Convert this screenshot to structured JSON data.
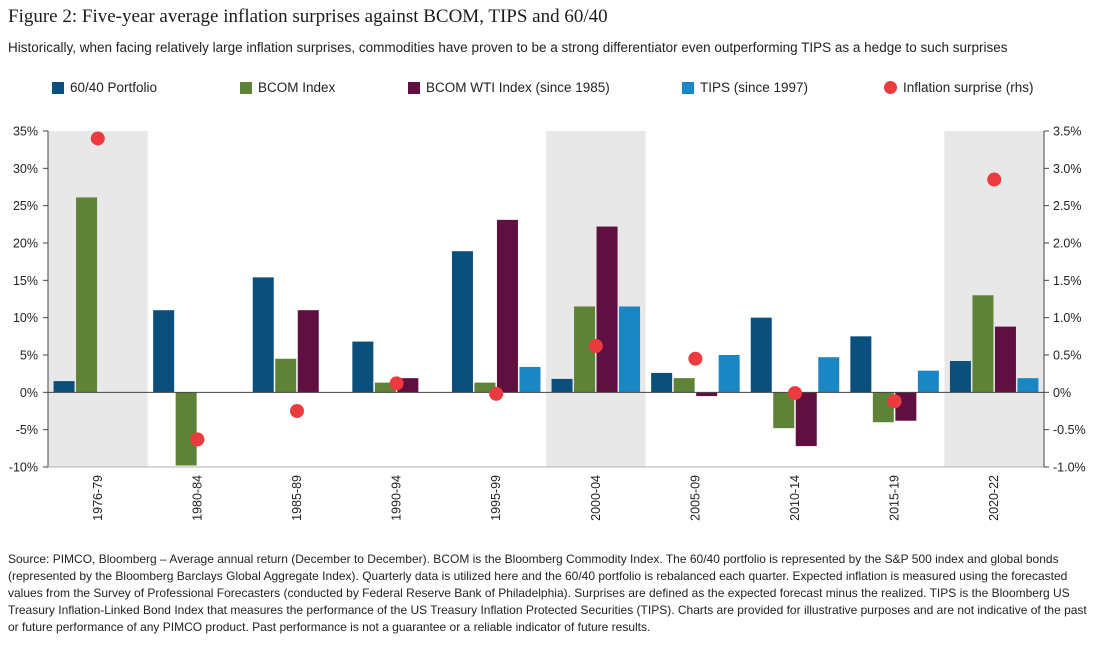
{
  "title": "Figure 2: Five-year average inflation surprises against BCOM, TIPS and 60/40",
  "subtitle": "Historically, when facing relatively large inflation surprises, commodities have proven to be a strong differentiator even outperforming TIPS as a hedge to such surprises",
  "legend": [
    {
      "label": "60/40 Portfolio",
      "color": "#0b4f7c",
      "shape": "square"
    },
    {
      "label": "BCOM Index",
      "color": "#5e8236",
      "shape": "square"
    },
    {
      "label": "BCOM WTI Index (since 1985)",
      "color": "#5f1041",
      "shape": "square"
    },
    {
      "label": "TIPS (since 1997)",
      "color": "#1a86c4",
      "shape": "square"
    },
    {
      "label": "Inflation surprise (rhs)",
      "color": "#ec3b3f",
      "shape": "circle"
    }
  ],
  "source": "Source: PIMCO, Bloomberg – Average annual return (December to December). BCOM is the Bloomberg Commodity Index. The 60/40 portfolio is represented by the S&P 500 index and global bonds (represented by the Bloomberg Barclays Global Aggregate Index). Quarterly data is utilized here and the 60/40 portfolio is rebalanced each quarter. Expected inflation is measured using the forecasted values from the Survey of Professional Forecasters (conducted by Federal Reserve Bank of Philadelphia). Surprises are defined as the expected forecast minus the realized. TIPS is the Bloomberg US Treasury Inflation-Linked Bond Index that measures the performance of the US Treasury Inflation Protected Securities (TIPS). Charts are provided for illustrative purposes and are not indicative of the past or future performance of any PIMCO product. Past performance is not a guarantee or a reliable indicator of future results.",
  "chart_data": {
    "type": "bar",
    "categories": [
      "1976-79",
      "1980-84",
      "1985-89",
      "1990-94",
      "1995-99",
      "2000-04",
      "2005-09",
      "2010-14",
      "2015-19",
      "2020-22"
    ],
    "series": [
      {
        "name": "60/40 Portfolio",
        "axis": "left",
        "color": "#0b4f7c",
        "values": [
          1.5,
          11.0,
          15.4,
          6.8,
          18.9,
          1.8,
          2.6,
          10.0,
          7.5,
          4.2
        ]
      },
      {
        "name": "BCOM Index",
        "axis": "left",
        "color": "#5e8236",
        "values": [
          26.1,
          -9.8,
          4.5,
          1.3,
          1.3,
          11.5,
          1.9,
          -4.8,
          -4.0,
          13.0
        ]
      },
      {
        "name": "BCOM WTI Index (since 1985)",
        "axis": "left",
        "color": "#5f1041",
        "values": [
          null,
          null,
          11.0,
          1.9,
          23.1,
          22.2,
          -0.5,
          -7.2,
          -3.8,
          8.8
        ]
      },
      {
        "name": "TIPS (since 1997)",
        "axis": "left",
        "color": "#1a86c4",
        "values": [
          null,
          null,
          null,
          null,
          3.4,
          11.5,
          5.0,
          4.7,
          2.9,
          1.9
        ]
      },
      {
        "name": "Inflation surprise (rhs)",
        "axis": "right",
        "type": "scatter",
        "color": "#ec3b3f",
        "values": [
          3.4,
          -0.63,
          -0.25,
          0.12,
          -0.02,
          0.62,
          0.45,
          -0.01,
          -0.12,
          2.85
        ]
      }
    ],
    "shaded_periods": [
      "1976-79",
      "2000-04",
      "2020-22"
    ],
    "ylim": [
      -10,
      35
    ],
    "y_ticks": [
      "35%",
      "30%",
      "25%",
      "20%",
      "15%",
      "10%",
      "5%",
      "0%",
      "-5%",
      "-10%"
    ],
    "y2lim": [
      -1.0,
      3.5
    ],
    "y2_ticks": [
      "3.5%",
      "3.0%",
      "2.5%",
      "2.0%",
      "1.5%",
      "1.0%",
      "0.5%",
      "0%",
      "-0.5%",
      "-1.0%"
    ],
    "xlabel": "",
    "ylabel": "",
    "grid": false,
    "legend_position": "top"
  }
}
